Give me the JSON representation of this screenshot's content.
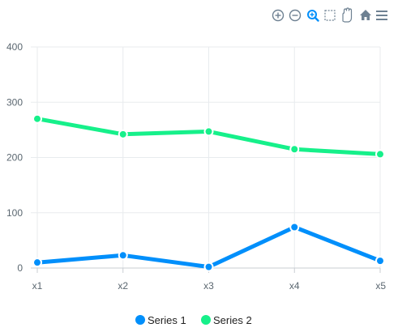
{
  "colors": {
    "series_1": "#008FFB",
    "series_2": "#16F08A",
    "grid": "#e8ebee",
    "axis": "#c8cdd2",
    "toolbar": "#6e8192",
    "toolbar_active": "#008FFB"
  },
  "toolbar": {
    "icons": [
      "zoom-in-icon",
      "zoom-out-icon",
      "selection-zoom-icon",
      "selection-icon",
      "pan-icon",
      "reset-home-icon",
      "menu-icon"
    ],
    "active": "selection-zoom-icon"
  },
  "chart_data": {
    "type": "line",
    "categories": [
      "x1",
      "x2",
      "x3",
      "x4",
      "x5"
    ],
    "series": [
      {
        "name": "Series 1",
        "values": [
          10,
          23,
          2,
          74,
          13
        ]
      },
      {
        "name": "Series 2",
        "values": [
          270,
          242,
          247,
          215,
          206
        ]
      }
    ],
    "ylim": [
      0,
      400
    ],
    "yticks": [
      0,
      100,
      200,
      300,
      400
    ],
    "grid": true,
    "legend": "bottom-center",
    "markers": true
  }
}
